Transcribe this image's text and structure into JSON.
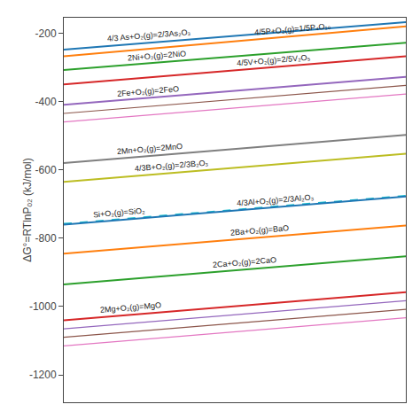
{
  "chart_data": {
    "type": "line",
    "ylabel": "ΔG°=RTlnPₒ₂ (kJ/mol)",
    "x": [
      0,
      1
    ],
    "xlim": [
      0,
      1
    ],
    "xticks": [],
    "ylim": [
      -1280,
      -155
    ],
    "yticks": [
      -200,
      -400,
      -600,
      -800,
      -1000,
      -1200
    ],
    "grid": false,
    "tick_labels": "y",
    "series": [
      {
        "name": "4/3 As+O₂(g)=2/3As₂O₃",
        "values": [
          -248,
          -168
        ],
        "line_style": "solid"
      },
      {
        "name": "4/5P+O₂(g)=1/5P₄O₁₀",
        "values": [
          -268,
          -180
        ],
        "line_style": "solid"
      },
      {
        "name": "2Ni+O₂(g)=2NiO",
        "values": [
          -308,
          -228
        ],
        "line_style": "solid"
      },
      {
        "name": "4/5V+O₂(g)=2/5V₂O₅",
        "values": [
          -350,
          -268
        ],
        "line_style": "solid"
      },
      {
        "name": "2Fe+O₂(g)=2FeO",
        "values": [
          -410,
          -328
        ],
        "line_style": "solid"
      },
      {
        "values": [
          -435,
          -353
        ],
        "line_style": "solid"
      },
      {
        "values": [
          -460,
          -378
        ],
        "line_style": "solid"
      },
      {
        "name": "2Mn+O₂(g)=2MnO",
        "values": [
          -580,
          -498
        ],
        "line_style": "solid"
      },
      {
        "name": "4/3B+O₂(g)=2/3B₂O₃",
        "values": [
          -635,
          -553
        ],
        "line_style": "solid"
      },
      {
        "name": "Si+O₂(g)=SiO₂",
        "values": [
          -758,
          -676
        ],
        "line_style": "dashed"
      },
      {
        "name": "4/3Al+O₂(g)=2/3Al₂O₃",
        "values": [
          -760,
          -678
        ],
        "line_style": "solid"
      },
      {
        "name": "2Ba+O₂(g)=BaO",
        "values": [
          -845,
          -763
        ],
        "line_style": "solid"
      },
      {
        "name": "2Ca+O₂(g)=2CaO",
        "values": [
          -935,
          -853
        ],
        "line_style": "solid"
      },
      {
        "name": "2Mg+O₂(g)=MgO",
        "values": [
          -1040,
          -958
        ],
        "line_style": "solid"
      },
      {
        "values": [
          -1065,
          -983
        ],
        "line_style": "solid"
      },
      {
        "values": [
          -1090,
          -1008
        ],
        "line_style": "solid"
      },
      {
        "values": [
          -1115,
          -1033
        ],
        "line_style": "solid"
      }
    ]
  }
}
